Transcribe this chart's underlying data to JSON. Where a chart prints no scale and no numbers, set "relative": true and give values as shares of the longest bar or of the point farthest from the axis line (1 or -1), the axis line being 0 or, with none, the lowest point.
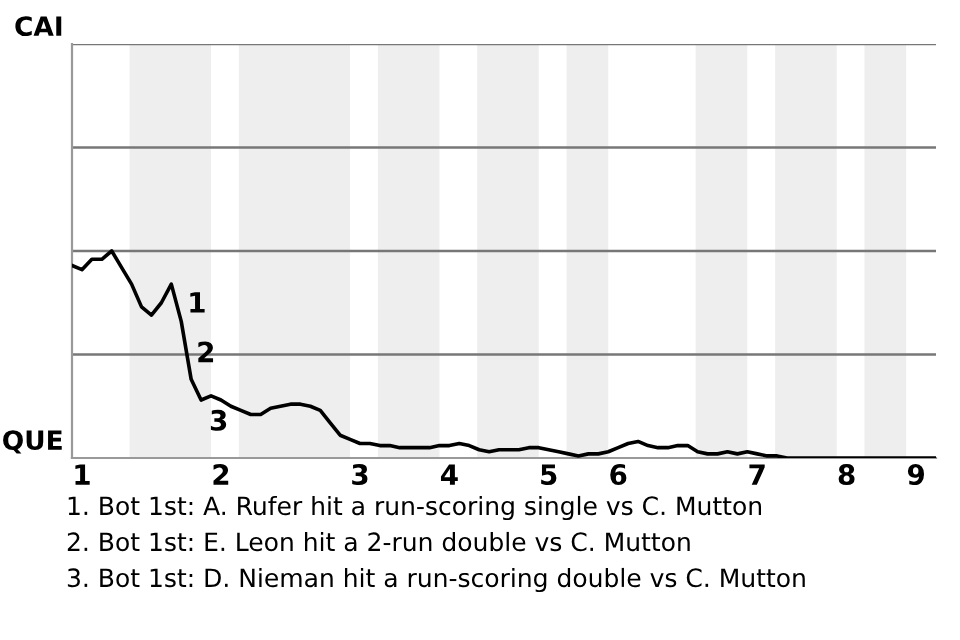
{
  "chart_data": {
    "type": "line",
    "relative": true,
    "categories": [
      null,
      "1",
      null,
      null,
      null,
      null,
      null,
      null,
      null,
      null,
      null,
      null,
      null,
      null,
      null,
      "2",
      null,
      null,
      null,
      null,
      null,
      null,
      null,
      null,
      null,
      null,
      null,
      null,
      null,
      "3",
      null,
      null,
      null,
      null,
      null,
      null,
      null,
      null,
      "4",
      null,
      null,
      null,
      null,
      null,
      null,
      null,
      null,
      null,
      "5",
      null,
      null,
      null,
      null,
      null,
      null,
      "6",
      null,
      null,
      null,
      null,
      null,
      null,
      null,
      null,
      null,
      null,
      null,
      null,
      null,
      "7",
      null,
      null,
      null,
      null,
      null,
      null,
      null,
      null,
      "8",
      null,
      null,
      null,
      null,
      null,
      null,
      "9",
      null,
      null
    ],
    "series": [
      {
        "color": "#000000",
        "values": [
          0.93,
          0.91,
          0.96,
          0.96,
          1.0,
          0.92,
          0.84,
          0.73,
          0.69,
          0.75,
          0.84,
          0.66,
          0.38,
          0.28,
          0.3,
          0.28,
          0.25,
          0.23,
          0.21,
          0.21,
          0.24,
          0.25,
          0.26,
          0.26,
          0.25,
          0.23,
          0.17,
          0.11,
          0.09,
          0.07,
          0.07,
          0.06,
          0.06,
          0.05,
          0.05,
          0.05,
          0.05,
          0.06,
          0.06,
          0.07,
          0.06,
          0.04,
          0.03,
          0.04,
          0.04,
          0.04,
          0.05,
          0.05,
          0.04,
          0.03,
          0.02,
          0.01,
          0.02,
          0.02,
          0.03,
          0.05,
          0.07,
          0.08,
          0.06,
          0.05,
          0.05,
          0.06,
          0.06,
          0.03,
          0.02,
          0.02,
          0.03,
          0.02,
          0.03,
          0.02,
          0.01,
          0.01,
          0,
          0,
          0,
          0,
          0,
          0,
          0,
          0,
          0,
          0,
          0,
          0,
          0,
          0,
          0,
          0
        ]
      }
    ],
    "ref_lines": [
      {
        "axis": "y",
        "value": 0.5,
        "color": "#777777"
      },
      {
        "axis": "y",
        "value": 1,
        "color": "#777777"
      },
      {
        "axis": "y",
        "value": 1.5,
        "color": "#777777"
      },
      {
        "axis": "y",
        "value": 2,
        "color": "#777777"
      }
    ],
    "marker": "none",
    "line_style": "solid",
    "legend": false,
    "annotations": [
      "CAI",
      "QUE",
      "1",
      "2",
      "3",
      "1. Bot 1st: A. Rufer hit a run-scoring single vs C. Mutton",
      "2. Bot 1st: E. Leon hit a 2-run double vs C. Mutton",
      "3. Bot 1st: D. Nieman hit a run-scoring double vs C. Mutton"
    ]
  }
}
